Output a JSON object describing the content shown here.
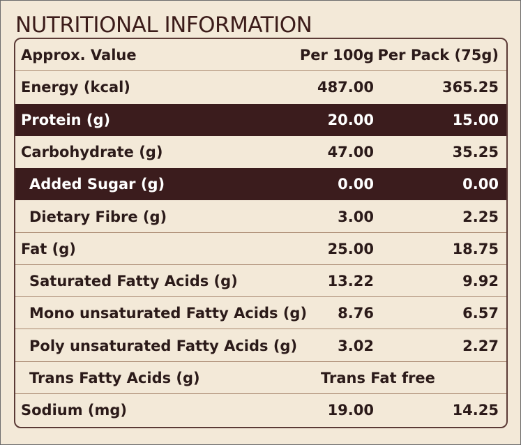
{
  "title": "NUTRITIONAL INFORMATION",
  "colors": {
    "accent_dark": "#3b1c1d",
    "background": "#f3e9d8",
    "title_text": "#3c1c1a"
  },
  "table": {
    "header": {
      "name": "Approx. Value",
      "per_100g": "Per 100g",
      "per_pack": "Per Pack (75g)"
    },
    "rows": [
      {
        "name": "Energy (kcal)",
        "per_100g": "487.00",
        "per_pack": "365.25",
        "indent": false,
        "highlight": false
      },
      {
        "name": "Protein (g)",
        "per_100g": "20.00",
        "per_pack": "15.00",
        "indent": false,
        "highlight": true
      },
      {
        "name": "Carbohydrate (g)",
        "per_100g": "47.00",
        "per_pack": "35.25",
        "indent": false,
        "highlight": false
      },
      {
        "name": "Added Sugar (g)",
        "per_100g": "0.00",
        "per_pack": "0.00",
        "indent": true,
        "highlight": true
      },
      {
        "name": "Dietary Fibre (g)",
        "per_100g": "3.00",
        "per_pack": "2.25",
        "indent": true,
        "highlight": false
      },
      {
        "name": "Fat (g)",
        "per_100g": "25.00",
        "per_pack": "18.75",
        "indent": false,
        "highlight": false
      },
      {
        "name": "Saturated Fatty Acids (g)",
        "per_100g": "13.22",
        "per_pack": "9.92",
        "indent": true,
        "highlight": false
      },
      {
        "name": "Mono unsaturated Fatty Acids (g)",
        "per_100g": "8.76",
        "per_pack": "6.57",
        "indent": true,
        "highlight": false
      },
      {
        "name": "Poly unsaturated Fatty Acids (g)",
        "per_100g": "3.02",
        "per_pack": "2.27",
        "indent": true,
        "highlight": false
      },
      {
        "name": "Trans Fatty Acids (g)",
        "span_value": "Trans Fat free",
        "indent": true,
        "highlight": false
      },
      {
        "name": "Sodium (mg)",
        "per_100g": "19.00",
        "per_pack": "14.25",
        "indent": false,
        "highlight": false
      }
    ]
  }
}
